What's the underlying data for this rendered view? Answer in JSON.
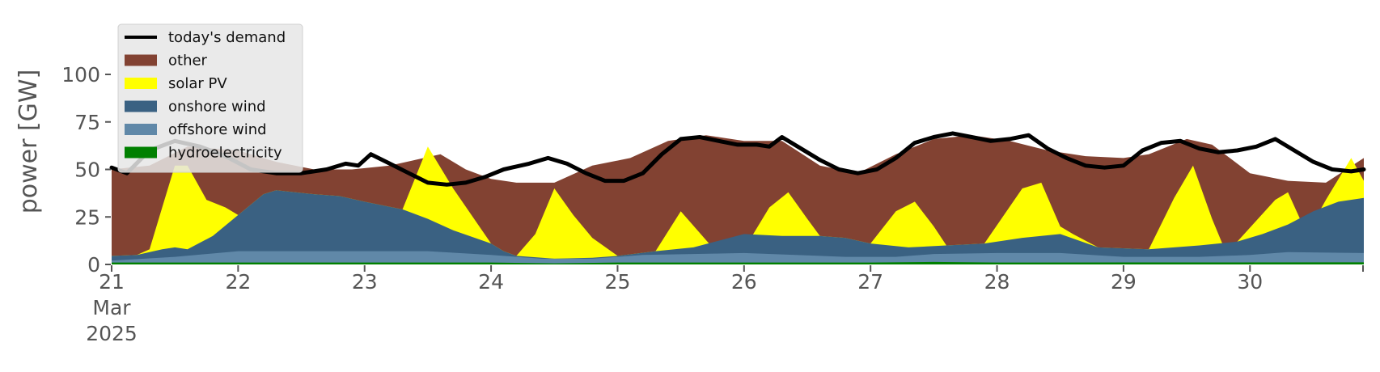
{
  "chart_data": {
    "type": "area",
    "ylabel": "power [GW]",
    "ylim": [
      0,
      120
    ],
    "yticks": [
      0,
      25,
      50,
      75,
      100
    ],
    "xlim": [
      0,
      9.9
    ],
    "x_tick_labels": [
      {
        "x": 0,
        "lines": [
          "21",
          "Mar",
          "2025"
        ]
      },
      {
        "x": 1,
        "lines": [
          "22"
        ]
      },
      {
        "x": 2,
        "lines": [
          "23"
        ]
      },
      {
        "x": 3,
        "lines": [
          "24"
        ]
      },
      {
        "x": 4,
        "lines": [
          "25"
        ]
      },
      {
        "x": 5,
        "lines": [
          "26"
        ]
      },
      {
        "x": 6,
        "lines": [
          "27"
        ]
      },
      {
        "x": 7,
        "lines": [
          "28"
        ]
      },
      {
        "x": 8,
        "lines": [
          "29"
        ]
      },
      {
        "x": 9,
        "lines": [
          "30"
        ]
      }
    ],
    "grid": false,
    "legend_position": "top-left",
    "legend": [
      {
        "name": "today's demand",
        "kind": "line",
        "color": "#000000"
      },
      {
        "name": "other",
        "kind": "patch",
        "color": "#824232"
      },
      {
        "name": "solar PV",
        "kind": "patch",
        "color": "#ffff00"
      },
      {
        "name": "onshore wind",
        "kind": "patch",
        "color": "#3a6182"
      },
      {
        "name": "offshore wind",
        "kind": "patch",
        "color": "#6088a8"
      },
      {
        "name": "hydroelectricity",
        "kind": "patch",
        "color": "#008000"
      }
    ],
    "stack_order": [
      "hydroelectricity",
      "offshore wind",
      "onshore wind",
      "solar PV",
      "other"
    ],
    "series": [
      {
        "name": "hydroelectricity",
        "color": "#008000",
        "points": [
          [
            0,
            1
          ],
          [
            3,
            1
          ],
          [
            3.5,
            0.6
          ],
          [
            4,
            1
          ],
          [
            6,
            1
          ],
          [
            6.5,
            1.3
          ],
          [
            7,
            1
          ],
          [
            9.9,
            1.1
          ]
        ]
      },
      {
        "name": "offshore wind",
        "color": "#6088a8",
        "points": [
          [
            0,
            2
          ],
          [
            0.5,
            4
          ],
          [
            1,
            7
          ],
          [
            2,
            7
          ],
          [
            2.5,
            7
          ],
          [
            3,
            5
          ],
          [
            3.4,
            3
          ],
          [
            3.8,
            3
          ],
          [
            4.2,
            5
          ],
          [
            5,
            6
          ],
          [
            5.8,
            4
          ],
          [
            6.2,
            4
          ],
          [
            6.5,
            5.5
          ],
          [
            7,
            6
          ],
          [
            7.5,
            6
          ],
          [
            8,
            4
          ],
          [
            8.6,
            4
          ],
          [
            9,
            5
          ],
          [
            9.3,
            6.5
          ],
          [
            9.9,
            6
          ]
        ]
      },
      {
        "name": "onshore wind",
        "color": "#3a6182",
        "points": [
          [
            0,
            4.5
          ],
          [
            0.2,
            5
          ],
          [
            0.4,
            8
          ],
          [
            0.5,
            9
          ],
          [
            0.6,
            8
          ],
          [
            0.8,
            15
          ],
          [
            1,
            26
          ],
          [
            1.2,
            37
          ],
          [
            1.3,
            39
          ],
          [
            1.6,
            37
          ],
          [
            1.8,
            36
          ],
          [
            2,
            33
          ],
          [
            2.3,
            29
          ],
          [
            2.5,
            24
          ],
          [
            2.7,
            18
          ],
          [
            3,
            11
          ],
          [
            3.1,
            7
          ],
          [
            3.2,
            4.5
          ],
          [
            3.5,
            3
          ],
          [
            3.8,
            3.5
          ],
          [
            4,
            4.5
          ],
          [
            4.3,
            7
          ],
          [
            4.6,
            9
          ],
          [
            5,
            16
          ],
          [
            5.3,
            15
          ],
          [
            5.6,
            15
          ],
          [
            5.8,
            14
          ],
          [
            6,
            11
          ],
          [
            6.3,
            9
          ],
          [
            6.6,
            10
          ],
          [
            6.9,
            11
          ],
          [
            7.2,
            14
          ],
          [
            7.5,
            16
          ],
          [
            7.8,
            9
          ],
          [
            8.2,
            8
          ],
          [
            8.6,
            10
          ],
          [
            8.9,
            12
          ],
          [
            9.1,
            16
          ],
          [
            9.3,
            21
          ],
          [
            9.5,
            28
          ],
          [
            9.7,
            33
          ],
          [
            9.9,
            35
          ]
        ]
      },
      {
        "name": "solar PV",
        "color": "#ffff00",
        "points": [
          [
            0,
            4.5
          ],
          [
            0.2,
            5
          ],
          [
            0.3,
            8
          ],
          [
            0.4,
            30
          ],
          [
            0.5,
            52
          ],
          [
            0.6,
            52
          ],
          [
            0.75,
            34
          ],
          [
            0.9,
            30
          ],
          [
            1,
            26
          ],
          [
            1.2,
            37
          ],
          [
            1.3,
            39
          ],
          [
            1.6,
            37
          ],
          [
            1.8,
            36
          ],
          [
            2,
            33
          ],
          [
            2.3,
            29
          ],
          [
            2.5,
            62
          ],
          [
            2.7,
            40
          ],
          [
            3,
            11
          ],
          [
            3.1,
            7
          ],
          [
            3.2,
            4.5
          ],
          [
            3.35,
            16
          ],
          [
            3.5,
            40
          ],
          [
            3.65,
            26
          ],
          [
            3.8,
            14
          ],
          [
            4,
            4.5
          ],
          [
            4.3,
            7
          ],
          [
            4.5,
            28
          ],
          [
            4.75,
            9
          ],
          [
            5,
            8
          ],
          [
            5.2,
            30
          ],
          [
            5.35,
            38
          ],
          [
            5.5,
            24
          ],
          [
            5.6,
            15
          ],
          [
            5.8,
            14
          ],
          [
            6,
            11
          ],
          [
            6.2,
            28
          ],
          [
            6.35,
            33
          ],
          [
            6.5,
            20
          ],
          [
            6.6,
            10
          ],
          [
            6.9,
            11
          ],
          [
            7.2,
            40
          ],
          [
            7.35,
            43
          ],
          [
            7.5,
            20
          ],
          [
            7.6,
            16
          ],
          [
            7.8,
            9
          ],
          [
            8.2,
            8
          ],
          [
            8.4,
            35
          ],
          [
            8.55,
            52
          ],
          [
            8.7,
            24
          ],
          [
            8.8,
            8
          ],
          [
            8.9,
            12
          ],
          [
            9.2,
            34
          ],
          [
            9.3,
            38
          ],
          [
            9.45,
            16
          ],
          [
            9.6,
            34
          ],
          [
            9.8,
            56
          ],
          [
            9.9,
            44
          ]
        ]
      },
      {
        "name": "other",
        "color": "#824232",
        "points": [
          [
            0,
            50
          ],
          [
            0.3,
            52
          ],
          [
            0.6,
            62
          ],
          [
            1,
            60
          ],
          [
            1.3,
            54
          ],
          [
            1.6,
            50
          ],
          [
            1.9,
            50
          ],
          [
            2.2,
            52
          ],
          [
            2.4,
            55
          ],
          [
            2.6,
            58
          ],
          [
            2.8,
            50
          ],
          [
            3,
            45
          ],
          [
            3.2,
            43
          ],
          [
            3.5,
            43
          ],
          [
            3.8,
            52
          ],
          [
            4.1,
            56
          ],
          [
            4.4,
            65
          ],
          [
            4.7,
            68
          ],
          [
            5,
            65
          ],
          [
            5.3,
            65
          ],
          [
            5.6,
            52
          ],
          [
            5.9,
            48
          ],
          [
            6.2,
            58
          ],
          [
            6.5,
            66
          ],
          [
            6.8,
            68
          ],
          [
            7.1,
            65
          ],
          [
            7.4,
            60
          ],
          [
            7.7,
            57
          ],
          [
            8,
            56
          ],
          [
            8.2,
            58
          ],
          [
            8.5,
            66
          ],
          [
            8.7,
            63
          ],
          [
            9,
            48
          ],
          [
            9.3,
            44
          ],
          [
            9.6,
            43
          ],
          [
            9.9,
            56
          ]
        ]
      }
    ],
    "demand": {
      "name": "today's demand",
      "color": "#000000",
      "points": [
        [
          0,
          51
        ],
        [
          0.12,
          48
        ],
        [
          0.3,
          60
        ],
        [
          0.5,
          65
        ],
        [
          0.7,
          62
        ],
        [
          0.9,
          57
        ],
        [
          1.1,
          50
        ],
        [
          1.3,
          48
        ],
        [
          1.5,
          48
        ],
        [
          1.7,
          50
        ],
        [
          1.85,
          53
        ],
        [
          1.95,
          52
        ],
        [
          2.05,
          58
        ],
        [
          2.2,
          53
        ],
        [
          2.35,
          48
        ],
        [
          2.5,
          43
        ],
        [
          2.65,
          42
        ],
        [
          2.8,
          43
        ],
        [
          2.95,
          46
        ],
        [
          3.1,
          50
        ],
        [
          3.3,
          53
        ],
        [
          3.45,
          56
        ],
        [
          3.6,
          53
        ],
        [
          3.75,
          48
        ],
        [
          3.9,
          44
        ],
        [
          4.05,
          44
        ],
        [
          4.2,
          48
        ],
        [
          4.35,
          58
        ],
        [
          4.5,
          66
        ],
        [
          4.65,
          67
        ],
        [
          4.8,
          65
        ],
        [
          4.95,
          63
        ],
        [
          5.1,
          63
        ],
        [
          5.2,
          62
        ],
        [
          5.3,
          67
        ],
        [
          5.45,
          61
        ],
        [
          5.6,
          55
        ],
        [
          5.75,
          50
        ],
        [
          5.9,
          48
        ],
        [
          6.05,
          50
        ],
        [
          6.2,
          56
        ],
        [
          6.35,
          64
        ],
        [
          6.5,
          67
        ],
        [
          6.65,
          69
        ],
        [
          6.8,
          67
        ],
        [
          6.95,
          65
        ],
        [
          7.1,
          66
        ],
        [
          7.25,
          68
        ],
        [
          7.4,
          61
        ],
        [
          7.55,
          56
        ],
        [
          7.7,
          52
        ],
        [
          7.85,
          51
        ],
        [
          8,
          52
        ],
        [
          8.15,
          60
        ],
        [
          8.3,
          64
        ],
        [
          8.45,
          65
        ],
        [
          8.6,
          61
        ],
        [
          8.75,
          59
        ],
        [
          8.9,
          60
        ],
        [
          9.05,
          62
        ],
        [
          9.2,
          66
        ],
        [
          9.35,
          60
        ],
        [
          9.5,
          54
        ],
        [
          9.65,
          50
        ],
        [
          9.8,
          49
        ],
        [
          9.9,
          50
        ]
      ]
    }
  }
}
